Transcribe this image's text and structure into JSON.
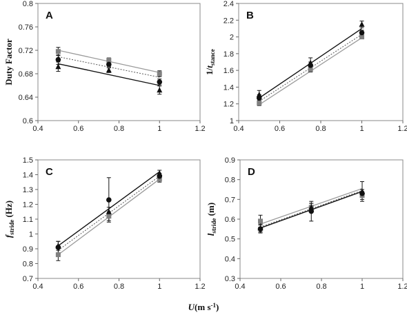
{
  "figure": {
    "xlabel": "U(m s-1)"
  },
  "chart_data": [
    {
      "type": "scatter",
      "panel": "A",
      "ylabel": "Duty Factor",
      "xlim": [
        0.4,
        1.2
      ],
      "ylim": [
        0.6,
        0.8
      ],
      "xticks": [
        0.4,
        0.6,
        0.8,
        1,
        1.2
      ],
      "yticks": [
        0.6,
        0.64,
        0.68,
        0.72,
        0.76,
        0.8
      ],
      "x": [
        0.5,
        0.75,
        1
      ],
      "series": [
        {
          "marker": "square",
          "color": "#808080",
          "values": [
            0.718,
            0.703,
            0.68
          ],
          "errors": [
            0.007,
            0.004,
            0.005
          ],
          "fit": [
            0.72,
            0.682
          ],
          "line": "solid-gray"
        },
        {
          "marker": "circle",
          "color": "#111111",
          "values": [
            0.704,
            0.696,
            0.666
          ],
          "errors": [
            0.008,
            0.004,
            0.005
          ],
          "fit": [
            0.709,
            0.674
          ],
          "line": "dotted"
        },
        {
          "marker": "triangle",
          "color": "#111111",
          "values": [
            0.692,
            0.686,
            0.652
          ],
          "errors": [
            0.008,
            0.004,
            0.007
          ],
          "fit": [
            0.697,
            0.66
          ],
          "line": "solid-black"
        }
      ]
    },
    {
      "type": "scatter",
      "panel": "B",
      "ylabel": "1/tstance",
      "xlim": [
        0.4,
        1.2
      ],
      "ylim": [
        1,
        2.4
      ],
      "xticks": [
        0.4,
        0.6,
        0.8,
        1,
        1.2
      ],
      "yticks": [
        1,
        1.2,
        1.4,
        1.6,
        1.8,
        2,
        2.2,
        2.4
      ],
      "x": [
        0.5,
        0.75,
        1
      ],
      "series": [
        {
          "marker": "square",
          "color": "#808080",
          "values": [
            1.21,
            1.61,
            2.0
          ],
          "errors": [
            0.03,
            0.03,
            0.02
          ],
          "fit": [
            1.19,
            1.99
          ],
          "line": "solid-gray"
        },
        {
          "marker": "circle",
          "color": "#111111",
          "values": [
            1.27,
            1.66,
            2.05
          ],
          "errors": [
            0.04,
            0.04,
            0.03
          ],
          "fit": [
            1.23,
            2.03
          ],
          "line": "dotted"
        },
        {
          "marker": "triangle",
          "color": "#111111",
          "values": [
            1.31,
            1.69,
            2.15
          ],
          "errors": [
            0.05,
            0.06,
            0.04
          ],
          "fit": [
            1.27,
            2.1
          ],
          "line": "solid-black"
        }
      ]
    },
    {
      "type": "scatter",
      "panel": "C",
      "ylabel": "fstride (Hz)",
      "xlim": [
        0.4,
        1.2
      ],
      "ylim": [
        0.7,
        1.5
      ],
      "xticks": [
        0.4,
        0.6,
        0.8,
        1,
        1.2
      ],
      "yticks": [
        0.7,
        0.8,
        0.9,
        1,
        1.1,
        1.2,
        1.3,
        1.4,
        1.5
      ],
      "x": [
        0.5,
        0.75,
        1
      ],
      "series": [
        {
          "marker": "square",
          "color": "#808080",
          "values": [
            0.86,
            1.12,
            1.37
          ],
          "errors": [
            0.04,
            0.03,
            0.02
          ],
          "fit": [
            0.86,
            1.37
          ],
          "line": "solid-gray"
        },
        {
          "marker": "circle",
          "color": "#111111",
          "values": [
            0.91,
            1.23,
            1.39
          ],
          "errors": [
            0.04,
            0.15,
            0.02
          ],
          "fit": [
            0.89,
            1.39
          ],
          "line": "dotted"
        },
        {
          "marker": "triangle",
          "color": "#111111",
          "values": [
            0.92,
            1.15,
            1.41
          ],
          "errors": [
            0.03,
            0.03,
            0.02
          ],
          "fit": [
            0.92,
            1.42
          ],
          "line": "solid-black"
        }
      ]
    },
    {
      "type": "scatter",
      "panel": "D",
      "ylabel": "lstride (m)",
      "xlim": [
        0.4,
        1.2
      ],
      "ylim": [
        0.3,
        0.9
      ],
      "xticks": [
        0.4,
        0.6,
        0.8,
        1,
        1.2
      ],
      "yticks": [
        0.3,
        0.4,
        0.5,
        0.6,
        0.7,
        0.8,
        0.9
      ],
      "x": [
        0.5,
        0.75,
        1
      ],
      "series": [
        {
          "marker": "square",
          "color": "#808080",
          "values": [
            0.59,
            0.66,
            0.72
          ],
          "errors": [
            0.03,
            0.02,
            0.02
          ],
          "fit": [
            0.575,
            0.755
          ],
          "line": "solid-gray"
        },
        {
          "marker": "circle",
          "color": "#111111",
          "values": [
            0.55,
            0.64,
            0.73
          ],
          "errors": [
            0.02,
            0.05,
            0.02
          ],
          "fit": [
            0.56,
            0.745
          ],
          "line": "dotted"
        },
        {
          "marker": "triangle",
          "color": "#111111",
          "values": [
            0.555,
            0.66,
            0.74
          ],
          "errors": [
            0.02,
            0.02,
            0.05
          ],
          "fit": [
            0.555,
            0.74
          ],
          "line": "solid-black"
        }
      ]
    }
  ]
}
